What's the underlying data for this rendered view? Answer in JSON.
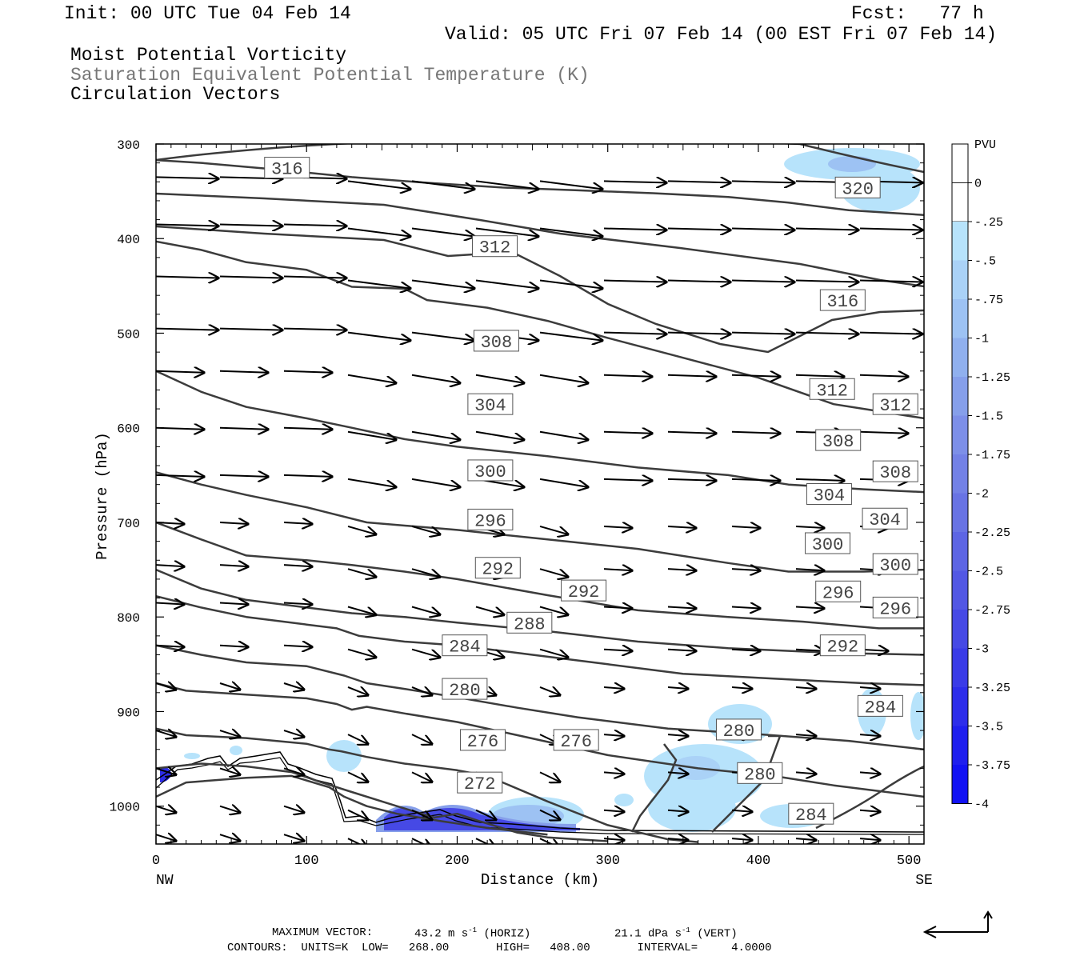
{
  "header": {
    "init": "Init: 00 UTC Tue 04 Feb 14",
    "fcst": "Fcst:   77 h",
    "valid": "Valid: 05 UTC Fri 07 Feb 14 (00 EST Fri 07 Feb 14)",
    "fields": [
      "Moist Potential Vorticity",
      "Saturation Equivalent Potential Temperature (K)",
      "Circulation Vectors"
    ]
  },
  "footer": {
    "max_vector_label": "MAXIMUM VECTOR:",
    "max_horiz": "43.2 m s",
    "horiz_tag": "(HORIZ)",
    "max_vert": "21.1 dPa s",
    "vert_tag": "(VERT)",
    "contours": "CONTOURS:  UNITS=K  LOW=   268.00       HIGH=   408.00       INTERVAL=     4.0000"
  },
  "colors": {
    "contour": "#3c3c3c",
    "background": "#ffffff",
    "pv_fill": [
      "#ffffff",
      "#ffffff",
      "#b7e3fb",
      "#aad2f7",
      "#9dc2f3",
      "#90b0ee",
      "#869fea",
      "#7d8fe8",
      "#7381e6",
      "#6873e4",
      "#5d65e4",
      "#5257e4",
      "#4649e5",
      "#3a3be7",
      "#2d2dea",
      "#1f1fee",
      "#1212f3"
    ]
  },
  "chart_data": {
    "type": "cross-section",
    "xlabel": "Distance (km)",
    "ylabel": "Pressure (hPa)",
    "xlim": [
      0,
      510
    ],
    "ylim": [
      300,
      1040
    ],
    "x_ticks": [
      0,
      100,
      200,
      300,
      400,
      500
    ],
    "y_ticks": [
      300,
      400,
      500,
      600,
      700,
      800,
      900,
      1000
    ],
    "x_end_labels": [
      "NW",
      "SE"
    ],
    "colorbar": {
      "unit": "PVU",
      "labels": [
        "0",
        "-.25",
        "-.5",
        "-.75",
        "-1",
        "-1.25",
        "-1.5",
        "-1.75",
        "-2",
        "-2.25",
        "-2.5",
        "-2.75",
        "-3",
        "-3.25",
        "-3.5",
        "-3.75",
        "-4"
      ]
    },
    "contours": [
      {
        "value": 316,
        "points": [
          [
            0,
            317
          ],
          [
            30,
            320
          ],
          [
            80,
            327
          ],
          [
            130,
            335
          ],
          [
            180,
            341
          ],
          [
            230,
            346
          ],
          [
            280,
            349
          ],
          [
            330,
            352
          ],
          [
            380,
            356
          ],
          [
            420,
            362
          ],
          [
            460,
            370
          ],
          [
            510,
            375
          ]
        ]
      },
      {
        "value": 312,
        "points": [
          [
            0,
            403
          ],
          [
            30,
            412
          ],
          [
            60,
            425
          ],
          [
            100,
            433
          ],
          [
            130,
            451
          ],
          [
            165,
            453
          ],
          [
            180,
            465
          ],
          [
            220,
            473
          ],
          [
            260,
            487
          ],
          [
            300,
            505
          ],
          [
            350,
            526
          ],
          [
            400,
            547
          ],
          [
            450,
            575
          ],
          [
            510,
            590
          ]
        ]
      },
      {
        "value": 308,
        "points": [
          [
            0,
            540
          ],
          [
            30,
            562
          ],
          [
            60,
            578
          ],
          [
            100,
            590
          ],
          [
            130,
            600
          ],
          [
            165,
            612
          ],
          [
            200,
            620
          ],
          [
            260,
            630
          ],
          [
            320,
            642
          ],
          [
            380,
            650
          ],
          [
            420,
            660
          ],
          [
            470,
            665
          ],
          [
            510,
            668
          ]
        ]
      },
      {
        "value": 304,
        "points": [
          [
            0,
            647
          ],
          [
            30,
            660
          ],
          [
            60,
            671
          ],
          [
            100,
            684
          ],
          [
            140,
            700
          ],
          [
            200,
            708
          ],
          [
            260,
            718
          ],
          [
            320,
            728
          ],
          [
            380,
            743
          ],
          [
            420,
            752
          ],
          [
            470,
            752
          ],
          [
            510,
            750
          ]
        ]
      },
      {
        "value": 300,
        "points": [
          [
            0,
            700
          ],
          [
            30,
            718
          ],
          [
            60,
            735
          ],
          [
            100,
            740
          ],
          [
            130,
            745
          ],
          [
            165,
            752
          ],
          [
            200,
            760
          ],
          [
            260,
            777
          ],
          [
            320,
            793
          ],
          [
            380,
            800
          ],
          [
            430,
            805
          ],
          [
            480,
            812
          ],
          [
            510,
            812
          ]
        ]
      },
      {
        "value": 296,
        "points": [
          [
            0,
            750
          ],
          [
            30,
            770
          ],
          [
            60,
            782
          ],
          [
            100,
            790
          ],
          [
            130,
            796
          ],
          [
            165,
            800
          ],
          [
            200,
            806
          ],
          [
            260,
            815
          ],
          [
            320,
            826
          ],
          [
            380,
            833
          ],
          [
            450,
            838
          ],
          [
            510,
            840
          ]
        ]
      },
      {
        "value": 292,
        "points": [
          [
            0,
            778
          ],
          [
            30,
            790
          ],
          [
            60,
            800
          ],
          [
            100,
            808
          ],
          [
            120,
            812
          ],
          [
            135,
            820
          ],
          [
            165,
            826
          ],
          [
            200,
            830
          ],
          [
            250,
            840
          ],
          [
            300,
            850
          ],
          [
            350,
            860
          ],
          [
            420,
            866
          ],
          [
            470,
            870
          ],
          [
            510,
            872
          ]
        ]
      },
      {
        "value": 288,
        "points": [
          [
            0,
            830
          ],
          [
            30,
            840
          ],
          [
            60,
            848
          ],
          [
            100,
            852
          ],
          [
            125,
            862
          ],
          [
            140,
            870
          ],
          [
            165,
            876
          ],
          [
            200,
            885
          ],
          [
            240,
            896
          ],
          [
            280,
            906
          ],
          [
            340,
            918
          ],
          [
            400,
            924
          ],
          [
            460,
            931
          ],
          [
            510,
            940
          ]
        ]
      },
      {
        "value": 284,
        "points": [
          [
            0,
            870
          ],
          [
            20,
            878
          ],
          [
            60,
            882
          ],
          [
            100,
            886
          ],
          [
            120,
            892
          ],
          [
            130,
            898
          ],
          [
            140,
            895
          ],
          [
            165,
            902
          ],
          [
            200,
            911
          ],
          [
            240,
            925
          ],
          [
            300,
            946
          ],
          [
            360,
            960
          ],
          [
            410,
            968
          ],
          [
            450,
            978
          ],
          [
            510,
            990
          ]
        ]
      },
      {
        "value": 280,
        "points": [
          [
            0,
            918
          ],
          [
            20,
            925
          ],
          [
            60,
            928
          ],
          [
            100,
            934
          ],
          [
            115,
            940
          ],
          [
            123,
            942
          ],
          [
            140,
            948
          ],
          [
            165,
            955
          ],
          [
            200,
            962
          ],
          [
            220,
            968
          ],
          [
            260,
            995
          ],
          [
            300,
            1020
          ],
          [
            340,
            1035
          ],
          [
            360,
            1038
          ]
        ]
      },
      {
        "value": 276,
        "points": [
          [
            0,
            960
          ],
          [
            30,
            955
          ],
          [
            60,
            958
          ],
          [
            90,
            964
          ],
          [
            110,
            975
          ],
          [
            130,
            985
          ],
          [
            160,
            1000
          ],
          [
            185,
            1012
          ],
          [
            200,
            1008
          ],
          [
            215,
            1016
          ],
          [
            240,
            1028
          ],
          [
            260,
            1033
          ],
          [
            300,
            1037
          ]
        ]
      },
      {
        "value": 272,
        "points": [
          [
            0,
            990
          ],
          [
            20,
            975
          ],
          [
            60,
            970
          ],
          [
            90,
            968
          ],
          [
            115,
            980
          ],
          [
            125,
            990
          ],
          [
            140,
            1000
          ],
          [
            160,
            1008
          ],
          [
            190,
            1016
          ],
          [
            220,
            1023
          ],
          [
            260,
            1030
          ]
        ]
      }
    ],
    "labels": [
      {
        "text": "316",
        "x": 87,
        "y": 325
      },
      {
        "text": "320",
        "x": 466,
        "y": 346
      },
      {
        "text": "312",
        "x": 225,
        "y": 408
      },
      {
        "text": "316",
        "x": 456,
        "y": 465
      },
      {
        "text": "308",
        "x": 226,
        "y": 508
      },
      {
        "text": "312",
        "x": 449,
        "y": 559
      },
      {
        "text": "312",
        "x": 491,
        "y": 575
      },
      {
        "text": "304",
        "x": 222,
        "y": 575
      },
      {
        "text": "308",
        "x": 453,
        "y": 613
      },
      {
        "text": "300",
        "x": 222,
        "y": 645
      },
      {
        "text": "308",
        "x": 491,
        "y": 646
      },
      {
        "text": "304",
        "x": 447,
        "y": 670
      },
      {
        "text": "296",
        "x": 222,
        "y": 697
      },
      {
        "text": "304",
        "x": 484,
        "y": 696
      },
      {
        "text": "300",
        "x": 446,
        "y": 722
      },
      {
        "text": "292",
        "x": 227,
        "y": 748
      },
      {
        "text": "300",
        "x": 491,
        "y": 744
      },
      {
        "text": "292",
        "x": 284,
        "y": 772
      },
      {
        "text": "296",
        "x": 453,
        "y": 773
      },
      {
        "text": "296",
        "x": 491,
        "y": 790
      },
      {
        "text": "288",
        "x": 248,
        "y": 806
      },
      {
        "text": "292",
        "x": 456,
        "y": 830
      },
      {
        "text": "284",
        "x": 205,
        "y": 830
      },
      {
        "text": "280",
        "x": 205,
        "y": 876
      },
      {
        "text": "284",
        "x": 481,
        "y": 894
      },
      {
        "text": "280",
        "x": 387,
        "y": 919
      },
      {
        "text": "276",
        "x": 217,
        "y": 930
      },
      {
        "text": "276",
        "x": 279,
        "y": 930
      },
      {
        "text": "280",
        "x": 401,
        "y": 965
      },
      {
        "text": "272",
        "x": 215,
        "y": 975
      },
      {
        "text": "284",
        "x": 435,
        "y": 1008
      }
    ]
  }
}
